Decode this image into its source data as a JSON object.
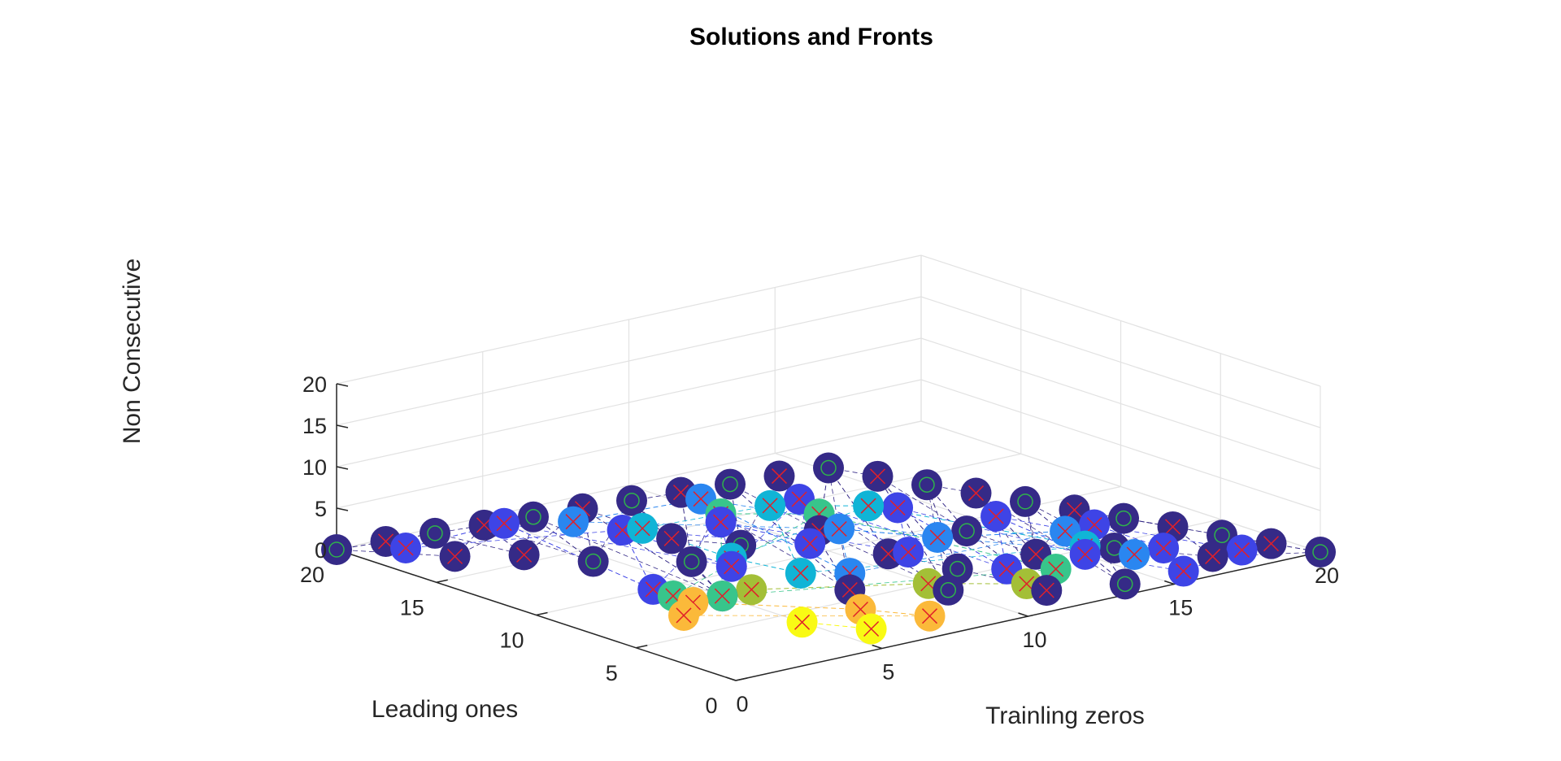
{
  "chart_data": {
    "type": "scatter",
    "title": "Solutions and Fronts",
    "xlabel": "Trainling zeros",
    "ylabel": "Leading ones",
    "zlabel": "Non Consecutive",
    "xlim": [
      0,
      20
    ],
    "ylim": [
      0,
      20
    ],
    "zlim": [
      0,
      20
    ],
    "xticks": [
      "0",
      "5",
      "10",
      "15",
      "20"
    ],
    "yticks": [
      "0",
      "5",
      "10",
      "15",
      "20"
    ],
    "zticks": [
      "0",
      "5",
      "10",
      "15",
      "20"
    ],
    "grid": true,
    "colormap": "parula",
    "marker_fill": "circle",
    "marker_overlay": [
      "green circle",
      "red x"
    ],
    "note": "3D scatter of solutions colored by front rank (dark blue = first front, yellow = last); dashed lines connect points within each front",
    "colors": {
      "front_1": "#352a87",
      "front_2": "#3e44e6",
      "front_3": "#2a86f0",
      "front_4": "#10b4d6",
      "front_5": "#38c58b",
      "front_6": "#a3bf37",
      "front_7": "#fbb93a",
      "front_8": "#f9fa14",
      "circle_marker": "#2fb24b",
      "x_marker": "#e0202a"
    },
    "series": [
      {
        "front": 1,
        "points": [
          [
            0,
            20,
            0
          ],
          [
            1,
            19,
            1
          ],
          [
            2,
            18,
            2
          ],
          [
            3,
            17,
            3
          ],
          [
            4,
            16,
            4
          ],
          [
            5,
            15,
            5
          ],
          [
            6,
            14,
            6
          ],
          [
            7,
            13,
            7
          ],
          [
            8,
            12,
            8
          ],
          [
            9,
            11,
            9
          ],
          [
            10,
            10,
            10
          ],
          [
            11,
            9,
            9
          ],
          [
            12,
            8,
            8
          ],
          [
            13,
            7,
            7
          ],
          [
            14,
            6,
            6
          ],
          [
            15,
            5,
            5
          ],
          [
            16,
            4,
            4
          ],
          [
            17,
            3,
            3
          ],
          [
            18,
            2,
            2
          ],
          [
            19,
            1,
            1
          ],
          [
            20,
            0,
            0
          ],
          [
            3,
            15,
            1
          ],
          [
            4,
            13,
            1
          ],
          [
            6,
            12,
            3
          ],
          [
            7,
            10,
            3
          ],
          [
            9,
            9,
            4
          ],
          [
            12,
            6,
            4
          ],
          [
            13,
            4,
            2
          ],
          [
            15,
            3,
            2
          ],
          [
            17,
            1,
            1
          ],
          [
            5,
            8,
            0
          ],
          [
            8,
            6,
            0
          ],
          [
            10,
            4,
            0
          ],
          [
            12,
            2,
            0
          ],
          [
            14,
            1,
            0
          ],
          [
            2,
            17,
            0
          ],
          [
            6,
            11,
            1
          ],
          [
            10,
            7,
            2
          ],
          [
            11,
            5,
            1
          ]
        ]
      },
      {
        "front": 2,
        "points": [
          [
            1,
            18,
            1
          ],
          [
            3,
            16,
            4
          ],
          [
            5,
            13,
            4
          ],
          [
            7,
            11,
            5
          ],
          [
            9,
            10,
            7
          ],
          [
            11,
            8,
            6
          ],
          [
            13,
            6,
            5
          ],
          [
            15,
            4,
            4
          ],
          [
            16,
            2,
            2
          ],
          [
            18,
            1,
            1
          ],
          [
            4,
            10,
            0
          ],
          [
            8,
            8,
            4
          ],
          [
            10,
            6,
            3
          ],
          [
            14,
            3,
            2
          ],
          [
            16,
            1,
            0
          ],
          [
            12,
            4,
            1
          ],
          [
            6,
            9,
            2
          ]
        ]
      },
      {
        "front": 3,
        "points": [
          [
            4,
            14,
            5
          ],
          [
            7,
            12,
            7
          ],
          [
            9,
            8,
            5
          ],
          [
            11,
            6,
            4
          ],
          [
            14,
            4,
            4
          ],
          [
            8,
            6,
            2
          ],
          [
            15,
            2,
            2
          ]
        ]
      },
      {
        "front": 4,
        "points": [
          [
            5,
            12,
            5
          ],
          [
            8,
            10,
            7
          ],
          [
            10,
            8,
            7
          ],
          [
            6,
            9,
            3
          ],
          [
            7,
            7,
            2
          ],
          [
            14,
            3,
            3
          ]
        ]
      },
      {
        "front": 5,
        "points": [
          [
            7,
            11,
            6
          ],
          [
            9,
            9,
            6
          ],
          [
            4,
            9,
            0
          ],
          [
            5,
            8,
            0
          ],
          [
            13,
            3,
            1
          ]
        ]
      },
      {
        "front": 6,
        "points": [
          [
            6,
            8,
            0
          ],
          [
            10,
            5,
            0
          ],
          [
            12,
            3,
            0
          ]
        ]
      },
      {
        "front": 7,
        "points": [
          [
            4,
            8,
            0
          ],
          [
            3,
            7,
            0
          ],
          [
            7,
            4,
            0
          ],
          [
            8,
            2,
            0
          ]
        ]
      },
      {
        "front": 8,
        "points": [
          [
            5,
            4,
            0
          ],
          [
            6,
            2,
            0
          ]
        ]
      }
    ]
  }
}
